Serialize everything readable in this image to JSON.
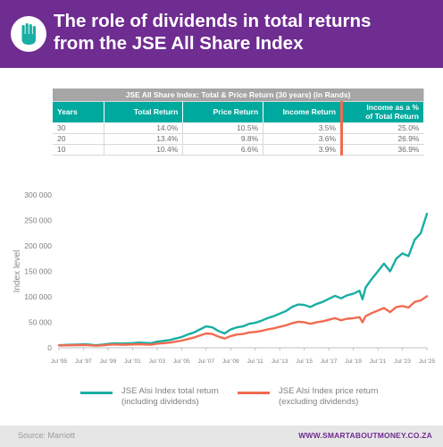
{
  "header": {
    "title_line1": "The role of dividends in total returns",
    "title_line2": "from the JSE All Share Index",
    "logo_icon": "hand-icon",
    "background": "#6f2c91"
  },
  "table": {
    "caption": "JSE All Share Index:  Total & Price Return (30 years) (in Rands)",
    "headers": [
      "Years",
      "Total Return",
      "Price Return",
      "Income Return",
      "Income as a %",
      "of Total Return"
    ],
    "rows": [
      [
        "30",
        "14.0%",
        "10.5%",
        "3.5%",
        "25.0%"
      ],
      [
        "20",
        "13.4%",
        "9.8%",
        "3.6%",
        "26.9%"
      ],
      [
        "10",
        "10.4%",
        "6.6%",
        "3.9%",
        "36.9%"
      ]
    ]
  },
  "chart_data": {
    "type": "line",
    "ylabel": "Index level",
    "xlabel": "",
    "ylim": [
      0,
      300000
    ],
    "yticks": [
      "0",
      "50 000",
      "100 000",
      "150 000",
      "200 000",
      "250 000",
      "300 000"
    ],
    "xticks": [
      "Jul '95",
      "Jul '97",
      "Jul '99",
      "Jul '01",
      "Jul '03",
      "Jul '05",
      "Jul '07",
      "Jul '09",
      "Jul '11",
      "Jul '13",
      "Jul '15",
      "Jul '17",
      "Jul '19",
      "Jul '21",
      "Jul '23",
      "Jul '25"
    ],
    "xrange": [
      1995.5,
      2025.5
    ],
    "grid": false,
    "legend_position": "bottom",
    "series": [
      {
        "name": "JSE Alsi Index total return (including dividends)",
        "color": "#1aaea4",
        "points": [
          [
            1995.5,
            5000
          ],
          [
            1996.0,
            5600
          ],
          [
            1996.5,
            6000
          ],
          [
            1997.0,
            6300
          ],
          [
            1997.5,
            6800
          ],
          [
            1998.0,
            6200
          ],
          [
            1998.5,
            5000
          ],
          [
            1999.0,
            6000
          ],
          [
            1999.5,
            7500
          ],
          [
            2000.0,
            8600
          ],
          [
            2000.5,
            8200
          ],
          [
            2001.0,
            8600
          ],
          [
            2001.5,
            9200
          ],
          [
            2002.0,
            10200
          ],
          [
            2002.5,
            9500
          ],
          [
            2003.0,
            9000
          ],
          [
            2003.5,
            12000
          ],
          [
            2004.0,
            13500
          ],
          [
            2004.5,
            15000
          ],
          [
            2005.0,
            18000
          ],
          [
            2005.5,
            21000
          ],
          [
            2006.0,
            26000
          ],
          [
            2006.5,
            30000
          ],
          [
            2007.0,
            36000
          ],
          [
            2007.5,
            42000
          ],
          [
            2008.0,
            40000
          ],
          [
            2008.5,
            33000
          ],
          [
            2009.0,
            28000
          ],
          [
            2009.5,
            36000
          ],
          [
            2010.0,
            40000
          ],
          [
            2010.5,
            42000
          ],
          [
            2011.0,
            47000
          ],
          [
            2011.5,
            49000
          ],
          [
            2012.0,
            53000
          ],
          [
            2012.5,
            58000
          ],
          [
            2013.0,
            62000
          ],
          [
            2013.5,
            67000
          ],
          [
            2014.0,
            72000
          ],
          [
            2014.5,
            80000
          ],
          [
            2015.0,
            85000
          ],
          [
            2015.5,
            84000
          ],
          [
            2016.0,
            80000
          ],
          [
            2016.5,
            86000
          ],
          [
            2017.0,
            90000
          ],
          [
            2017.5,
            96000
          ],
          [
            2018.0,
            102000
          ],
          [
            2018.5,
            97000
          ],
          [
            2019.0,
            103000
          ],
          [
            2019.5,
            106000
          ],
          [
            2020.0,
            112000
          ],
          [
            2020.25,
            95000
          ],
          [
            2020.5,
            118000
          ],
          [
            2021.0,
            135000
          ],
          [
            2021.5,
            150000
          ],
          [
            2022.0,
            165000
          ],
          [
            2022.5,
            150000
          ],
          [
            2023.0,
            175000
          ],
          [
            2023.5,
            185000
          ],
          [
            2024.0,
            180000
          ],
          [
            2024.5,
            212000
          ],
          [
            2025.0,
            225000
          ],
          [
            2025.5,
            263000
          ]
        ]
      },
      {
        "name": "JSE Alsi Index price return (excluding dividends)",
        "color": "#f26b4f",
        "points": [
          [
            1995.5,
            4500
          ],
          [
            1996.0,
            4800
          ],
          [
            1996.5,
            5000
          ],
          [
            1997.0,
            5200
          ],
          [
            1997.5,
            5500
          ],
          [
            1998.0,
            5000
          ],
          [
            1998.5,
            4000
          ],
          [
            1999.0,
            4800
          ],
          [
            1999.5,
            5800
          ],
          [
            2000.0,
            6500
          ],
          [
            2000.5,
            6000
          ],
          [
            2001.0,
            6200
          ],
          [
            2001.5,
            6500
          ],
          [
            2002.0,
            7000
          ],
          [
            2002.5,
            6500
          ],
          [
            2003.0,
            6000
          ],
          [
            2003.5,
            8000
          ],
          [
            2004.0,
            9000
          ],
          [
            2004.5,
            10000
          ],
          [
            2005.0,
            12000
          ],
          [
            2005.5,
            14000
          ],
          [
            2006.0,
            17000
          ],
          [
            2006.5,
            20000
          ],
          [
            2007.0,
            24000
          ],
          [
            2007.5,
            28000
          ],
          [
            2008.0,
            27000
          ],
          [
            2008.5,
            22000
          ],
          [
            2009.0,
            18000
          ],
          [
            2009.5,
            23000
          ],
          [
            2010.0,
            26000
          ],
          [
            2010.5,
            27000
          ],
          [
            2011.0,
            30000
          ],
          [
            2011.5,
            31000
          ],
          [
            2012.0,
            33000
          ],
          [
            2012.5,
            36000
          ],
          [
            2013.0,
            38000
          ],
          [
            2013.5,
            41000
          ],
          [
            2014.0,
            44000
          ],
          [
            2014.5,
            48000
          ],
          [
            2015.0,
            51000
          ],
          [
            2015.5,
            50000
          ],
          [
            2016.0,
            47000
          ],
          [
            2016.5,
            50000
          ],
          [
            2017.0,
            52000
          ],
          [
            2017.5,
            55000
          ],
          [
            2018.0,
            58000
          ],
          [
            2018.5,
            54000
          ],
          [
            2019.0,
            57000
          ],
          [
            2019.5,
            58000
          ],
          [
            2020.0,
            60000
          ],
          [
            2020.25,
            50000
          ],
          [
            2020.5,
            62000
          ],
          [
            2021.0,
            68000
          ],
          [
            2021.5,
            73000
          ],
          [
            2022.0,
            78000
          ],
          [
            2022.5,
            70000
          ],
          [
            2023.0,
            80000
          ],
          [
            2023.5,
            82000
          ],
          [
            2024.0,
            79000
          ],
          [
            2024.5,
            90000
          ],
          [
            2025.0,
            93000
          ],
          [
            2025.5,
            101000
          ]
        ]
      }
    ]
  },
  "legend": {
    "total_line1": "JSE Alsi Index total return",
    "total_line2": "(including dividends)",
    "price_line1": "JSE Alsi Index price return",
    "price_line2": "(excluding dividends)"
  },
  "footer": {
    "source": "Source: Marriott",
    "site": "WWW.SMARTABOUTMONEY.CO.ZA"
  }
}
